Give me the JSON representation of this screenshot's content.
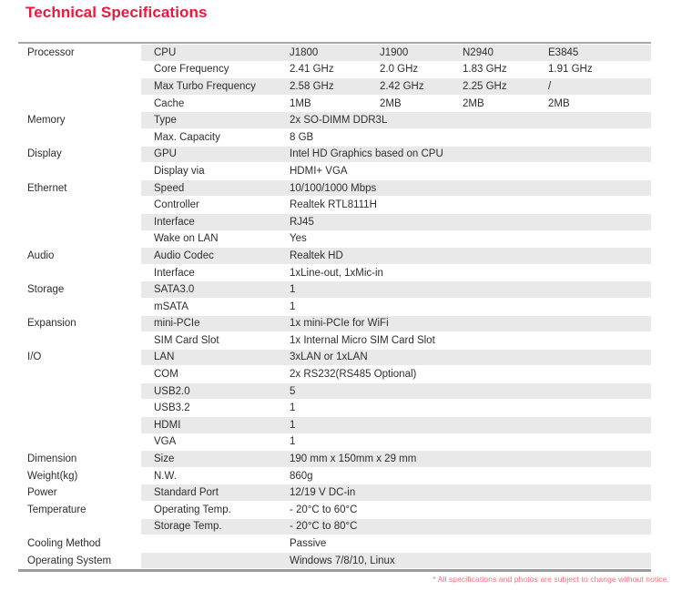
{
  "title": "Technical Specifications",
  "footnote": "* All specifications and photos are subject to change without notice.",
  "colors": {
    "accent_red": "#e8193f",
    "footnote_pink": "#f2717f",
    "row_stripe": "#e9e9e9",
    "border_top": "#a8a8a8",
    "border_bottom": "#9b9b9b",
    "text": "#2e2e2e"
  },
  "table": {
    "sections": [
      {
        "category": "Processor",
        "rows": [
          {
            "label": "CPU",
            "values": [
              "J1800",
              "J1900",
              "N2940",
              "E3845"
            ]
          },
          {
            "label": "Core Frequency",
            "values": [
              "2.41 GHz",
              "2.0 GHz",
              "1.83 GHz",
              "1.91 GHz"
            ]
          },
          {
            "label": "Max Turbo Frequency",
            "values": [
              "2.58 GHz",
              "2.42 GHz",
              "2.25 GHz",
              "/"
            ]
          },
          {
            "label": "Cache",
            "values": [
              "1MB",
              "2MB",
              "2MB",
              "2MB"
            ]
          }
        ]
      },
      {
        "category": "Memory",
        "rows": [
          {
            "label": "Type",
            "values": [
              "2x SO-DIMM DDR3L"
            ]
          },
          {
            "label": "Max. Capacity",
            "values": [
              "8 GB"
            ]
          }
        ]
      },
      {
        "category": "Display",
        "rows": [
          {
            "label": "GPU",
            "values": [
              "Intel HD Graphics based on CPU"
            ]
          },
          {
            "label": "Display via",
            "values": [
              "HDMI+ VGA"
            ]
          }
        ]
      },
      {
        "category": "Ethernet",
        "rows": [
          {
            "label": "Speed",
            "values": [
              "10/100/1000 Mbps"
            ]
          },
          {
            "label": "Controller",
            "values": [
              "Realtek RTL8111H"
            ]
          },
          {
            "label": "Interface",
            "values": [
              "RJ45"
            ]
          },
          {
            "label": "Wake on LAN",
            "values": [
              "Yes"
            ]
          }
        ]
      },
      {
        "category": "Audio",
        "rows": [
          {
            "label": "Audio Codec",
            "values": [
              "Realtek HD"
            ]
          },
          {
            "label": "Interface",
            "values": [
              "1xLine-out, 1xMic-in"
            ]
          }
        ]
      },
      {
        "category": "Storage",
        "rows": [
          {
            "label": "SATA3.0",
            "values": [
              "1"
            ]
          },
          {
            "label": "mSATA",
            "values": [
              "1"
            ]
          }
        ]
      },
      {
        "category": "Expansion",
        "rows": [
          {
            "label": "mini-PCIe",
            "values": [
              "1x mini-PCIe for WiFi"
            ]
          },
          {
            "label": "SIM Card Slot",
            "values": [
              "1x Internal Micro SIM Card Slot"
            ]
          }
        ]
      },
      {
        "category": "I/O",
        "rows": [
          {
            "label": "LAN",
            "values": [
              "3xLAN or 1xLAN"
            ]
          },
          {
            "label": "COM",
            "values": [
              "2x RS232(RS485 Optional)"
            ]
          },
          {
            "label": "USB2.0",
            "values": [
              "5"
            ]
          },
          {
            "label": "USB3.2",
            "values": [
              "1"
            ]
          },
          {
            "label": "HDMI",
            "values": [
              "1"
            ]
          },
          {
            "label": "VGA",
            "values": [
              "1"
            ]
          }
        ]
      },
      {
        "category": "Dimension",
        "rows": [
          {
            "label": "Size",
            "values": [
              "190 mm x 150mm x 29 mm"
            ]
          }
        ]
      },
      {
        "category": "Weight(kg)",
        "rows": [
          {
            "label": "N.W.",
            "values": [
              "860g"
            ]
          }
        ]
      },
      {
        "category": "Power",
        "rows": [
          {
            "label": "Standard Port",
            "values": [
              "12/19 V DC-in"
            ]
          }
        ]
      },
      {
        "category": "Temperature",
        "rows": [
          {
            "label": "Operating Temp.",
            "values": [
              "- 20°C to 60°C"
            ]
          },
          {
            "label": "Storage Temp.",
            "values": [
              "- 20°C to 80°C"
            ]
          }
        ]
      },
      {
        "category": "Cooling Method",
        "rows": [
          {
            "label": "",
            "values": [
              "Passive"
            ]
          }
        ]
      },
      {
        "category": "Operating System",
        "rows": [
          {
            "label": "",
            "values": [
              "Windows 7/8/10, Linux"
            ]
          }
        ]
      }
    ]
  }
}
